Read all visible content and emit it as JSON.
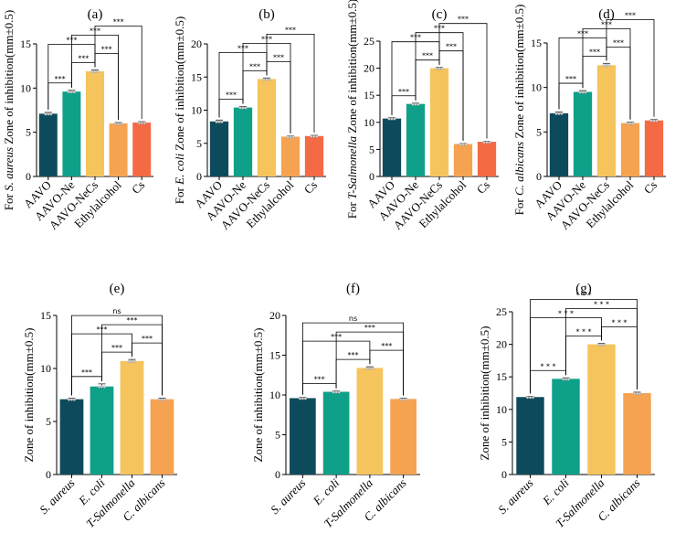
{
  "palette": [
    "#0d4b5c",
    "#0fa089",
    "#f6c45c",
    "#f5a251",
    "#f46a45"
  ],
  "chart_data": [
    {
      "type": "bar",
      "panel": "(a)",
      "ylabel_prefix": "For ",
      "ylabel_italic": "S. aureus",
      "ylabel_suffix": " Zone of inhibition(mm±0.5)",
      "ylim": [
        0,
        15
      ],
      "yticks": [
        0,
        5,
        10,
        15
      ],
      "categories": [
        "AAVO",
        "AAVO-Ne",
        "AAVO-NeCs",
        "Ethylalcohol",
        "Cs"
      ],
      "italic_categories": false,
      "values": [
        7.1,
        9.6,
        11.9,
        6.0,
        6.1
      ],
      "errors": [
        0.15,
        0.15,
        0.15,
        0.1,
        0.1
      ],
      "comparisons": [
        {
          "from": 0,
          "to": 1,
          "label": "***"
        },
        {
          "from": 1,
          "to": 2,
          "label": "***"
        },
        {
          "from": 2,
          "to": 3,
          "label": "***"
        },
        {
          "from": 0,
          "to": 2,
          "label": "***"
        },
        {
          "from": 2,
          "to": 4,
          "label": "***"
        },
        {
          "from": 1,
          "to": 3,
          "label": "***"
        }
      ]
    },
    {
      "type": "bar",
      "panel": "(b)",
      "ylabel_prefix": "For ",
      "ylabel_italic": "E. coli",
      "ylabel_suffix": " Zone of inhibition(mm±0.5)",
      "ylim": [
        0,
        20
      ],
      "yticks": [
        0,
        5,
        10,
        15,
        20
      ],
      "categories": [
        "AAVO",
        "AAVO-Ne",
        "AAVO-NeCs",
        "Ethylalcohol",
        "Cs"
      ],
      "italic_categories": false,
      "values": [
        8.3,
        10.4,
        14.7,
        6.0,
        6.1
      ],
      "errors": [
        0.2,
        0.15,
        0.15,
        0.1,
        0.1
      ],
      "comparisons": [
        {
          "from": 0,
          "to": 1,
          "label": "***"
        },
        {
          "from": 1,
          "to": 2,
          "label": "***"
        },
        {
          "from": 2,
          "to": 3,
          "label": "***"
        },
        {
          "from": 0,
          "to": 2,
          "label": "***"
        },
        {
          "from": 2,
          "to": 4,
          "label": "***"
        },
        {
          "from": 1,
          "to": 3,
          "label": "***"
        }
      ]
    },
    {
      "type": "bar",
      "panel": "(c)",
      "ylabel_prefix": "For ",
      "ylabel_italic": "T-Salmonella",
      "ylabel_suffix": " Zone of inhibition(mm±0.5)",
      "ylim": [
        0,
        25
      ],
      "yticks": [
        0,
        5,
        10,
        15,
        20,
        25
      ],
      "categories": [
        "AAVO",
        "AAVO-Ne",
        "AAVO-NeCs",
        "Ethylalcohol",
        "Cs"
      ],
      "italic_categories": false,
      "values": [
        10.7,
        13.4,
        20.0,
        6.0,
        6.4
      ],
      "errors": [
        0.15,
        0.15,
        0.15,
        0.1,
        0.1
      ],
      "comparisons": [
        {
          "from": 0,
          "to": 1,
          "label": "***"
        },
        {
          "from": 1,
          "to": 2,
          "label": "***"
        },
        {
          "from": 2,
          "to": 3,
          "label": "***"
        },
        {
          "from": 0,
          "to": 2,
          "label": "***"
        },
        {
          "from": 2,
          "to": 4,
          "label": "***"
        },
        {
          "from": 1,
          "to": 3,
          "label": "***"
        }
      ]
    },
    {
      "type": "bar",
      "panel": "(d)",
      "ylabel_prefix": "For ",
      "ylabel_italic": "C. albicans",
      "ylabel_suffix": " Zone of inhibition(mm±0.5)",
      "ylim": [
        0,
        15
      ],
      "yticks": [
        0,
        5,
        10,
        15
      ],
      "categories": [
        "AAVO",
        "AAVO-Ne",
        "AAVO-NeCs",
        "Ethylalcohol",
        "Cs"
      ],
      "italic_categories": false,
      "values": [
        7.1,
        9.5,
        12.5,
        6.0,
        6.3
      ],
      "errors": [
        0.15,
        0.15,
        0.2,
        0.1,
        0.1
      ],
      "comparisons": [
        {
          "from": 0,
          "to": 1,
          "label": "***"
        },
        {
          "from": 1,
          "to": 2,
          "label": "***"
        },
        {
          "from": 2,
          "to": 3,
          "label": "***"
        },
        {
          "from": 0,
          "to": 2,
          "label": "***"
        },
        {
          "from": 2,
          "to": 4,
          "label": "***"
        },
        {
          "from": 1,
          "to": 3,
          "label": "***"
        }
      ]
    },
    {
      "type": "bar",
      "panel": "(e)",
      "ylabel_prefix": "",
      "ylabel_italic": "",
      "ylabel_suffix": "Zone of inhibition(mm±0.5)",
      "ylim": [
        0,
        15
      ],
      "yticks": [
        0,
        5,
        10,
        15
      ],
      "categories": [
        "S. aureus",
        "E. coli",
        "T-Salmonella",
        "C. albicans"
      ],
      "italic_categories": true,
      "values": [
        7.1,
        8.3,
        10.7,
        7.1
      ],
      "errors": [
        0.1,
        0.25,
        0.15,
        0.1
      ],
      "comparisons": [
        {
          "from": 0,
          "to": 1,
          "label": "***"
        },
        {
          "from": 1,
          "to": 2,
          "label": "***"
        },
        {
          "from": 2,
          "to": 3,
          "label": "***"
        },
        {
          "from": 0,
          "to": 2,
          "label": "***"
        },
        {
          "from": 1,
          "to": 3,
          "label": "***"
        },
        {
          "from": 0,
          "to": 3,
          "label": "ns"
        }
      ]
    },
    {
      "type": "bar",
      "panel": "(f)",
      "ylabel_prefix": "",
      "ylabel_italic": "",
      "ylabel_suffix": "Zone of inhibition(mm±0.5)",
      "ylim": [
        0,
        20
      ],
      "yticks": [
        0,
        5,
        10,
        15,
        20
      ],
      "categories": [
        "S. aureus",
        "E. coli",
        "T-Salmonella",
        "C. albicans"
      ],
      "italic_categories": true,
      "values": [
        9.6,
        10.4,
        13.4,
        9.5
      ],
      "errors": [
        0.1,
        0.1,
        0.15,
        0.1
      ],
      "comparisons": [
        {
          "from": 0,
          "to": 1,
          "label": "***"
        },
        {
          "from": 1,
          "to": 2,
          "label": "***"
        },
        {
          "from": 2,
          "to": 3,
          "label": "***"
        },
        {
          "from": 0,
          "to": 2,
          "label": "***"
        },
        {
          "from": 1,
          "to": 3,
          "label": "***"
        },
        {
          "from": 0,
          "to": 3,
          "label": "ns"
        }
      ]
    },
    {
      "type": "bar",
      "panel": "(g)",
      "ylabel_prefix": "",
      "ylabel_italic": "",
      "ylabel_suffix": "Zone of inhibition(mm±0.5)",
      "ylim": [
        0,
        25
      ],
      "yticks": [
        0,
        5,
        10,
        15,
        20,
        25
      ],
      "categories": [
        "S. aureus",
        "E. coli",
        "T-Salmonella",
        "C. albicans"
      ],
      "italic_categories": true,
      "values": [
        11.9,
        14.7,
        20.0,
        12.5
      ],
      "errors": [
        0.1,
        0.15,
        0.15,
        0.15
      ],
      "comparisons": [
        {
          "from": 0,
          "to": 1,
          "label": "* * *"
        },
        {
          "from": 1,
          "to": 2,
          "label": "* * *"
        },
        {
          "from": 2,
          "to": 3,
          "label": "* * *"
        },
        {
          "from": 0,
          "to": 2,
          "label": "* * *"
        },
        {
          "from": 1,
          "to": 3,
          "label": "* * *"
        },
        {
          "from": 0,
          "to": 3,
          "label": "* * *"
        }
      ]
    }
  ]
}
